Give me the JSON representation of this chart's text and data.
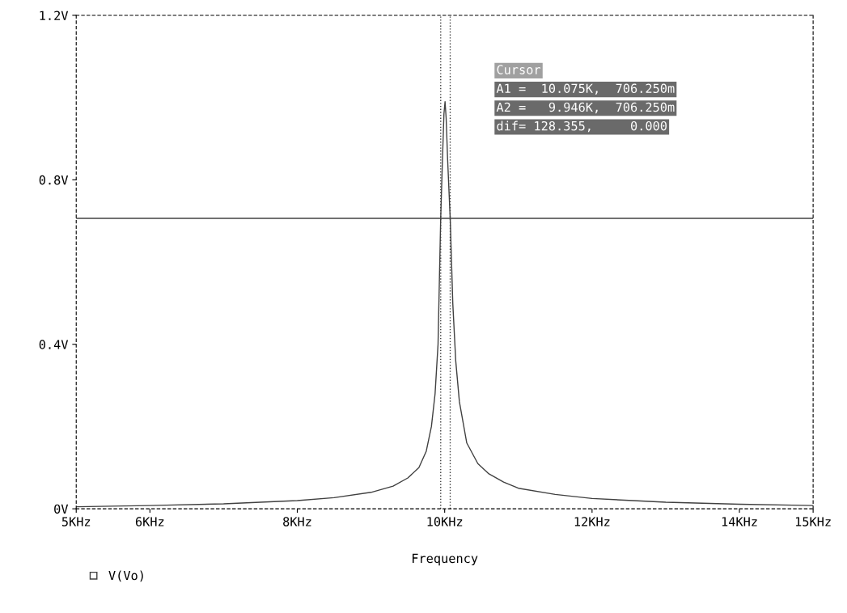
{
  "chart_data": {
    "type": "line",
    "xlabel": "Frequency",
    "x": [
      5,
      6,
      7,
      8,
      8.5,
      9,
      9.3,
      9.5,
      9.65,
      9.75,
      9.82,
      9.87,
      9.91,
      9.946,
      9.97,
      9.99,
      10.005,
      10.02,
      10.04,
      10.075,
      10.11,
      10.15,
      10.2,
      10.3,
      10.45,
      10.6,
      10.8,
      11,
      11.5,
      12,
      13,
      14,
      15
    ],
    "series": [
      {
        "name": "V(Vo)",
        "color": "#404040",
        "values": [
          0.005,
          0.008,
          0.012,
          0.02,
          0.027,
          0.04,
          0.055,
          0.075,
          0.1,
          0.14,
          0.2,
          0.28,
          0.4,
          0.706,
          0.85,
          0.96,
          0.99,
          0.95,
          0.85,
          0.706,
          0.5,
          0.36,
          0.26,
          0.16,
          0.11,
          0.085,
          0.065,
          0.05,
          0.035,
          0.025,
          0.016,
          0.011,
          0.008
        ]
      }
    ],
    "xlim": [
      5,
      15
    ],
    "xticks": [
      {
        "value": 5,
        "label": "5KHz"
      },
      {
        "value": 6,
        "label": "6KHz"
      },
      {
        "value": 8,
        "label": "8KHz"
      },
      {
        "value": 10,
        "label": "10KHz"
      },
      {
        "value": 12,
        "label": "12KHz"
      },
      {
        "value": 14,
        "label": "14KHz"
      },
      {
        "value": 15,
        "label": "15KHz"
      }
    ],
    "ylim": [
      0,
      1.2
    ],
    "yticks": [
      {
        "value": 0,
        "label": "0V"
      },
      {
        "value": 0.4,
        "label": "0.4V"
      },
      {
        "value": 0.8,
        "label": "0.8V"
      },
      {
        "value": 1.2,
        "label": "1.2V"
      }
    ],
    "ref_lines": [
      {
        "axis": "x",
        "value": 9.946,
        "line_style": "dotted",
        "color": "#404040"
      },
      {
        "axis": "x",
        "value": 10.075,
        "line_style": "dotted",
        "color": "#404040"
      },
      {
        "axis": "y",
        "value": 0.70625,
        "line_style": "solid",
        "color": "#404040"
      }
    ],
    "annotations": [
      "Cursor",
      "A1 =  10.075K,  706.250m",
      "A2 =   9.946K,  706.250m",
      "dif= 128.355,     0.000"
    ],
    "legend": "bottom left",
    "grid": false,
    "marker": "none",
    "line_style": "solid"
  }
}
